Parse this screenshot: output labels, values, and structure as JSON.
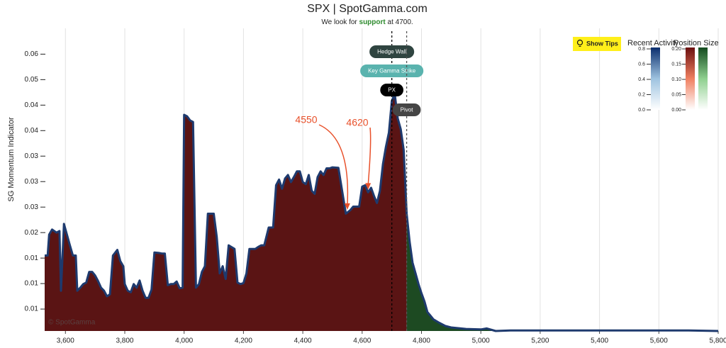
{
  "chart_data": {
    "type": "area",
    "title": "SPX | SpotGamma.com",
    "subtitle": [
      {
        "text": "We look for "
      },
      {
        "text": "support",
        "bold": true,
        "color": "#2e8b2e"
      },
      {
        "text": " at 4700."
      }
    ],
    "y_label": "SG Momentum Indicator",
    "watermark": "© SpotGamma",
    "x": [
      3530,
      3540,
      3545,
      3555,
      3570,
      3580,
      3585,
      3595,
      3605,
      3615,
      3625,
      3635,
      3640,
      3650,
      3660,
      3670,
      3680,
      3690,
      3700,
      3710,
      3720,
      3730,
      3740,
      3750,
      3760,
      3775,
      3785,
      3795,
      3800,
      3810,
      3820,
      3830,
      3840,
      3850,
      3860,
      3870,
      3880,
      3890,
      3900,
      3915,
      3925,
      3935,
      3945,
      3955,
      3965,
      3975,
      3985,
      3995,
      4000,
      4010,
      4020,
      4030,
      4040,
      4050,
      4060,
      4070,
      4080,
      4100,
      4110,
      4120,
      4130,
      4140,
      4150,
      4170,
      4180,
      4190,
      4200,
      4210,
      4220,
      4240,
      4250,
      4260,
      4270,
      4285,
      4300,
      4310,
      4320,
      4330,
      4340,
      4350,
      4360,
      4370,
      4380,
      4390,
      4400,
      4410,
      4420,
      4430,
      4440,
      4450,
      4460,
      4470,
      4480,
      4490,
      4500,
      4520,
      4545,
      4560,
      4570,
      4590,
      4600,
      4610,
      4620,
      4630,
      4640,
      4650,
      4660,
      4670,
      4680,
      4690,
      4700,
      4710,
      4720,
      4730,
      4740,
      4750,
      4760,
      4770,
      4780,
      4790,
      4800,
      4810,
      4820,
      4830,
      4840,
      4860,
      4880,
      4900,
      4950,
      5000,
      5020,
      5050,
      5100,
      5200,
      5300,
      5400,
      5500,
      5600,
      5700,
      5800
    ],
    "values": [
      0.0155,
      0.0155,
      0.0196,
      0.0206,
      0.02,
      0.0203,
      0.0086,
      0.0217,
      0.0196,
      0.0175,
      0.0155,
      0.0155,
      0.0086,
      0.0092,
      0.0099,
      0.0102,
      0.0123,
      0.0123,
      0.0116,
      0.0105,
      0.0092,
      0.0086,
      0.0075,
      0.0079,
      0.0155,
      0.0166,
      0.0144,
      0.0134,
      0.0099,
      0.0086,
      0.0083,
      0.0099,
      0.0092,
      0.0106,
      0.0086,
      0.0072,
      0.0072,
      0.0088,
      0.0161,
      0.016,
      0.0159,
      0.0159,
      0.0097,
      0.0099,
      0.0099,
      0.0104,
      0.0091,
      0.0092,
      0.0431,
      0.0428,
      0.042,
      0.0417,
      0.0092,
      0.0099,
      0.0123,
      0.0134,
      0.0237,
      0.0237,
      0.0192,
      0.012,
      0.0134,
      0.0109,
      0.0175,
      0.0168,
      0.0102,
      0.0099,
      0.0101,
      0.012,
      0.0168,
      0.0168,
      0.0172,
      0.0175,
      0.0175,
      0.021,
      0.021,
      0.0293,
      0.0304,
      0.0286,
      0.0306,
      0.0313,
      0.0299,
      0.0309,
      0.032,
      0.032,
      0.0299,
      0.0295,
      0.0313,
      0.0282,
      0.0276,
      0.0309,
      0.032,
      0.0313,
      0.0326,
      0.0326,
      0.0328,
      0.0327,
      0.0237,
      0.0244,
      0.0251,
      0.0251,
      0.029,
      0.0293,
      0.0279,
      0.0288,
      0.0272,
      0.0258,
      0.0282,
      0.0334,
      0.0368,
      0.0396,
      0.0458,
      0.0472,
      0.0424,
      0.0403,
      0.0362,
      0.0237,
      0.0182,
      0.0141,
      0.012,
      0.0099,
      0.0081,
      0.0065,
      0.0044,
      0.0037,
      0.003,
      0.0023,
      0.0017,
      0.0014,
      0.0011,
      0.001,
      0.0012,
      0.0007,
      0.0008,
      0.0008,
      0.0008,
      0.0008,
      0.0008,
      0.0008,
      0.0008,
      0.0007
    ],
    "line_color": "#1e3a6e",
    "fill_below_color": "#5a1414",
    "fill_above_color": "#1d4a22",
    "split_at": 4750,
    "xlim": [
      3530,
      5800
    ],
    "ylim": [
      0.0007,
      0.057
    ],
    "xticks": [
      {
        "value": 3600,
        "label": "3,600"
      },
      {
        "value": 3800,
        "label": "3,800"
      },
      {
        "value": 4000,
        "label": "4,000"
      },
      {
        "value": 4200,
        "label": "4,200"
      },
      {
        "value": 4400,
        "label": "4,400"
      },
      {
        "value": 4600,
        "label": "4,600"
      },
      {
        "value": 4800,
        "label": "4,800"
      },
      {
        "value": 5000,
        "label": "5,000"
      },
      {
        "value": 5200,
        "label": "5,200"
      },
      {
        "value": 5400,
        "label": "5,400"
      },
      {
        "value": 5600,
        "label": "5,600"
      },
      {
        "value": 5800,
        "label": "5,800"
      }
    ],
    "yticks": [
      {
        "value": 0.055,
        "label": "0.06"
      },
      {
        "value": 0.05,
        "label": "0.05"
      },
      {
        "value": 0.045,
        "label": "0.04"
      },
      {
        "value": 0.04,
        "label": "0.04"
      },
      {
        "value": 0.035,
        "label": "0.03"
      },
      {
        "value": 0.03,
        "label": "0.03"
      },
      {
        "value": 0.025,
        "label": "0.03"
      },
      {
        "value": 0.02,
        "label": "0.02"
      },
      {
        "value": 0.015,
        "label": "0.01"
      },
      {
        "value": 0.01,
        "label": "0.01"
      },
      {
        "value": 0.005,
        "label": "0.01"
      }
    ],
    "grid": true,
    "levels": [
      {
        "name": "Hedge Wall",
        "x": 4700,
        "color": "#2f4440"
      },
      {
        "name": "Key Gamma Strike",
        "x": 4700,
        "color": "#5ab3ae"
      },
      {
        "name": "PX",
        "x": 4700,
        "color": "#000000"
      },
      {
        "name": "Pivot",
        "x": 4750,
        "color": "#454545"
      }
    ],
    "annotations": [
      {
        "text": "4550",
        "x": 4550,
        "color": "#e8502a"
      },
      {
        "text": "4620",
        "x": 4620,
        "color": "#e8502a"
      }
    ],
    "tips_button": "Show Tips",
    "colorbars": [
      {
        "title": "Recent Activity",
        "colors": [
          "#ffffff",
          "#9ec3e0",
          "#0b2e6e"
        ],
        "lim": [
          0,
          0.8
        ],
        "ticks": [
          {
            "value": 0.8,
            "label": "0.8"
          },
          {
            "value": 0.6,
            "label": "0.6"
          },
          {
            "value": 0.4,
            "label": "0.4"
          },
          {
            "value": 0.2,
            "label": "0.2"
          },
          {
            "value": 0,
            "label": "0.0"
          }
        ]
      },
      {
        "title": "Position Size",
        "colors": [
          "#ffffff",
          "#f08060",
          "#6b0f0f"
        ],
        "green": [
          "#ffffff",
          "#8fd08f",
          "#134a1e"
        ],
        "lim": [
          0,
          0.2
        ],
        "ticks": [
          {
            "value": 0.2,
            "label": "0.20"
          },
          {
            "value": 0.15,
            "label": "0.15"
          },
          {
            "value": 0.1,
            "label": "0.10"
          },
          {
            "value": 0.05,
            "label": "0.05"
          },
          {
            "value": 0,
            "label": "0.00"
          }
        ]
      }
    ]
  }
}
